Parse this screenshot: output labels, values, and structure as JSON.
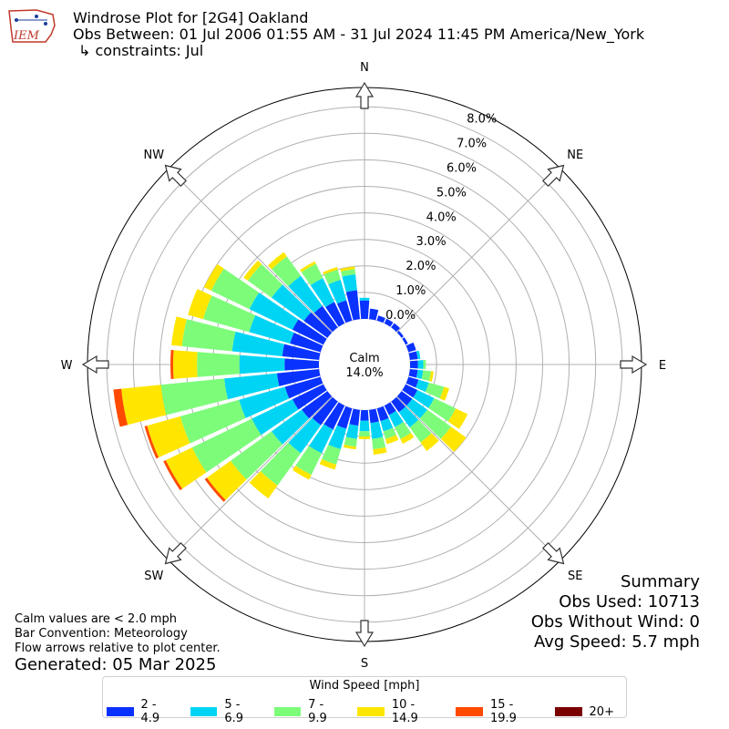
{
  "header": {
    "title": "Windrose Plot for [2G4] Oakland",
    "obs_between": "Obs Between: 01 Jul 2006 01:55 AM - 31 Jul 2024 11:45 PM America/New_York",
    "constraints": "↳ constraints: Jul",
    "logo_text": "IEM"
  },
  "notes": {
    "calm_note": "Calm values are < 2.0 mph",
    "bar_convention": "Bar Convention: Meteorology",
    "flow_note": "Flow arrows relative to plot center.",
    "generated": "Generated: 05 Mar 2025"
  },
  "summary": {
    "title": "Summary",
    "obs_used": "Obs Used: 10713",
    "obs_without_wind": "Obs Without Wind: 0",
    "avg_speed": "Avg Speed: 5.7 mph"
  },
  "legend": {
    "title": "Wind Speed [mph]",
    "items": [
      {
        "label": "2 - 4.9",
        "color": "#0a32ff"
      },
      {
        "label": "5 - 6.9",
        "color": "#00d4f4"
      },
      {
        "label": "7 - 9.9",
        "color": "#7dfc7a"
      },
      {
        "label": "10 - 14.9",
        "color": "#ffe600"
      },
      {
        "label": "15 - 19.9",
        "color": "#ff4a00"
      },
      {
        "label": "20+",
        "color": "#7a0000"
      }
    ]
  },
  "chart_data": {
    "type": "windrose",
    "center_label": "Calm",
    "calm_percent": "14.0%",
    "radial_ticks": [
      "0.0%",
      "1.0%",
      "2.0%",
      "3.0%",
      "4.0%",
      "5.0%",
      "6.0%",
      "7.0%",
      "8.0%"
    ],
    "radial_range": [
      0,
      8
    ],
    "compass_labels": {
      "N": "N",
      "NE": "NE",
      "E": "E",
      "SE": "SE",
      "S": "S",
      "SW": "SW",
      "W": "W",
      "NW": "NW"
    },
    "grid": true,
    "speed_bins": [
      "2 - 4.9",
      "5 - 6.9",
      "7 - 9.9",
      "10 - 14.9",
      "15 - 19.9",
      "20+"
    ],
    "direction_bins_deg": [
      0,
      10,
      20,
      30,
      40,
      50,
      60,
      70,
      80,
      90,
      100,
      110,
      120,
      130,
      140,
      150,
      160,
      170,
      180,
      190,
      200,
      210,
      220,
      230,
      240,
      250,
      260,
      270,
      280,
      290,
      300,
      310,
      320,
      330,
      340,
      350
    ],
    "cumulative_percent": [
      [
        0.7,
        0.8,
        0.8,
        0.8,
        0.8,
        0.8
      ],
      [
        0.4,
        0.4,
        0.4,
        0.4,
        0.4,
        0.4
      ],
      [
        0.2,
        0.2,
        0.2,
        0.2,
        0.2,
        0.2
      ],
      [
        0.2,
        0.2,
        0.2,
        0.2,
        0.2,
        0.2
      ],
      [
        0.2,
        0.2,
        0.2,
        0.2,
        0.2,
        0.2
      ],
      [
        0.1,
        0.1,
        0.1,
        0.1,
        0.1,
        0.1
      ],
      [
        0.1,
        0.1,
        0.1,
        0.1,
        0.1,
        0.1
      ],
      [
        0.3,
        0.3,
        0.3,
        0.3,
        0.3,
        0.3
      ],
      [
        0.3,
        0.4,
        0.4,
        0.4,
        0.4,
        0.4
      ],
      [
        0.3,
        0.5,
        0.6,
        0.6,
        0.6,
        0.6
      ],
      [
        0.3,
        0.5,
        0.8,
        0.9,
        0.9,
        0.9
      ],
      [
        0.4,
        0.8,
        1.4,
        1.6,
        1.6,
        1.6
      ],
      [
        0.5,
        1.2,
        2.1,
        2.6,
        2.6,
        2.6
      ],
      [
        0.5,
        1.2,
        2.3,
        3.0,
        3.0,
        3.0
      ],
      [
        0.5,
        1.2,
        1.9,
        2.3,
        2.3,
        2.3
      ],
      [
        0.4,
        0.9,
        1.4,
        1.6,
        1.6,
        1.6
      ],
      [
        0.5,
        0.9,
        1.2,
        1.4,
        1.4,
        1.4
      ],
      [
        0.5,
        1.1,
        1.5,
        1.7,
        1.7,
        1.7
      ],
      [
        0.4,
        0.8,
        1.0,
        1.1,
        1.1,
        1.1
      ],
      [
        0.6,
        1.1,
        1.4,
        1.5,
        1.5,
        1.5
      ],
      [
        0.8,
        1.6,
        2.2,
        2.4,
        2.4,
        2.4
      ],
      [
        1.0,
        2.0,
        2.9,
        3.1,
        3.1,
        3.1
      ],
      [
        1.1,
        2.4,
        3.9,
        4.5,
        4.5,
        4.5
      ],
      [
        1.2,
        2.6,
        4.5,
        5.6,
        5.7,
        5.7
      ],
      [
        1.3,
        3.0,
        5.5,
        6.6,
        6.7,
        6.7
      ],
      [
        1.4,
        3.2,
        5.5,
        6.8,
        6.9,
        6.9
      ],
      [
        1.6,
        3.6,
        6.0,
        7.5,
        7.8,
        7.8
      ],
      [
        1.3,
        3.0,
        4.6,
        5.5,
        5.6,
        5.6
      ],
      [
        1.4,
        3.3,
        5.2,
        5.6,
        5.6,
        5.6
      ],
      [
        1.2,
        2.8,
        4.6,
        5.2,
        5.2,
        5.2
      ],
      [
        1.3,
        3.1,
        4.7,
        5.0,
        5.0,
        5.0
      ],
      [
        1.1,
        2.6,
        3.7,
        3.9,
        3.9,
        3.9
      ],
      [
        1.0,
        2.4,
        3.3,
        3.5,
        3.5,
        3.5
      ],
      [
        0.9,
        1.9,
        2.5,
        2.6,
        2.6,
        2.6
      ],
      [
        0.8,
        1.6,
        2.0,
        2.1,
        2.1,
        2.1
      ],
      [
        1.1,
        1.7,
        1.9,
        2.0,
        2.0,
        2.0
      ]
    ]
  }
}
